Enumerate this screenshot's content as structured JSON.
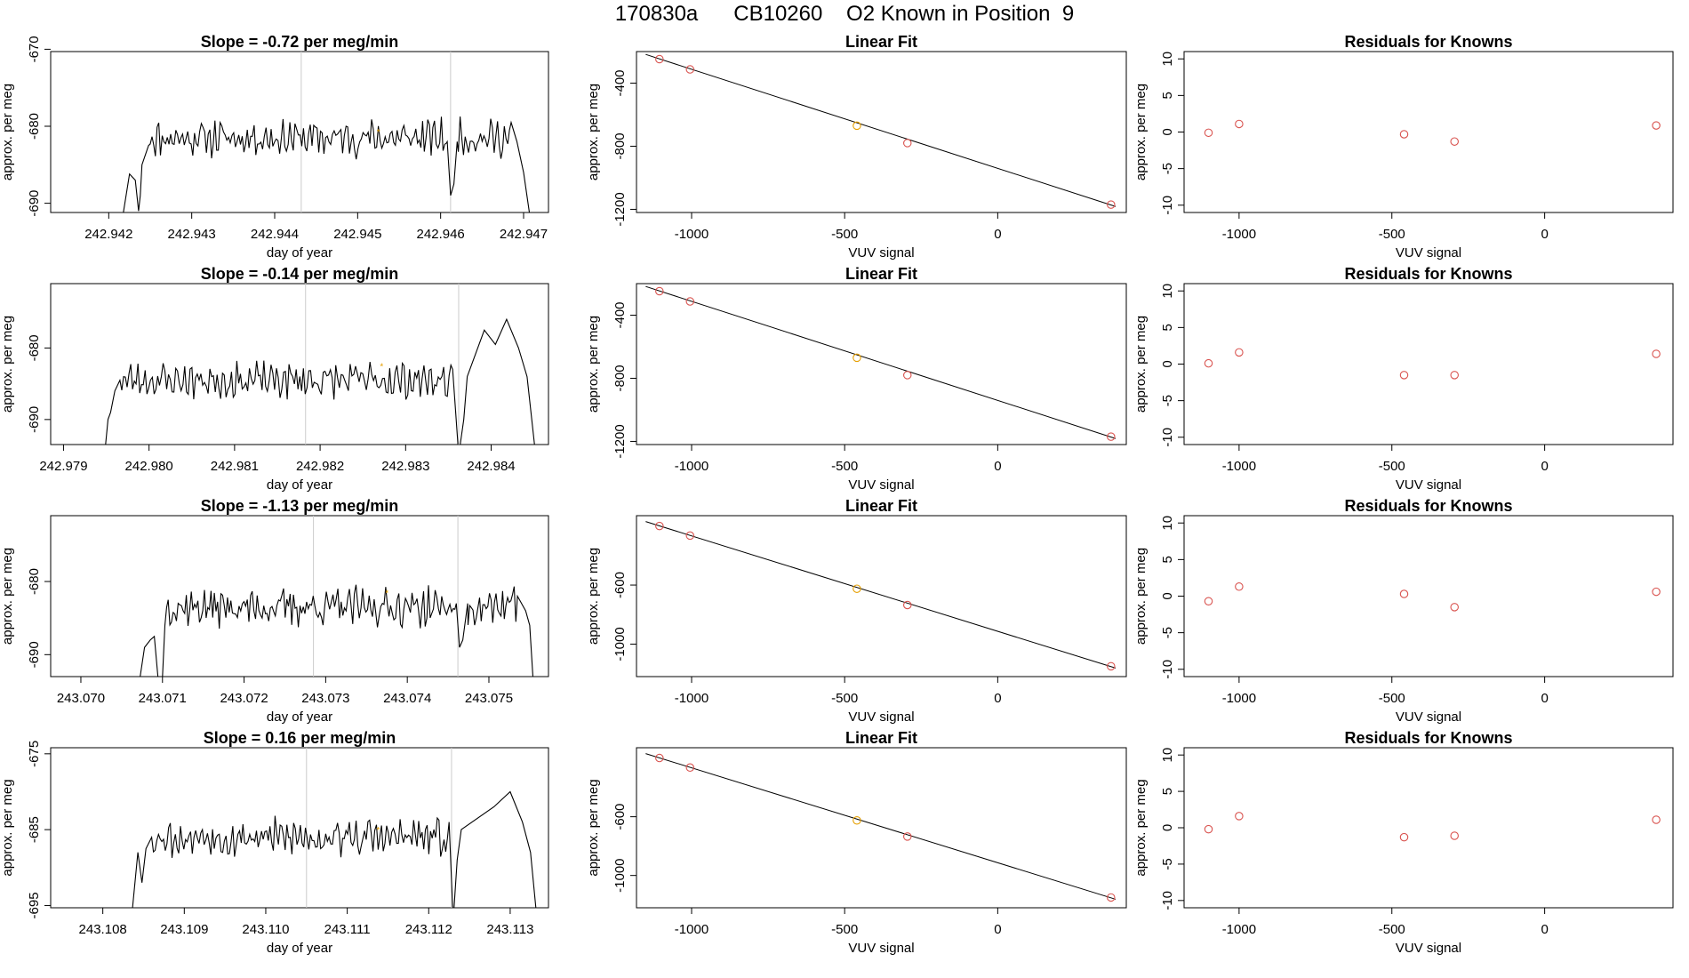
{
  "page": {
    "title": "170830a      CB10260    O2 Known in Position  9"
  },
  "colors": {
    "trace": "#000000",
    "gridline": "#cccccc",
    "marker_red": "#d9534f",
    "marker_orange": "#e69f00",
    "fit_line": "#000000"
  },
  "chart_data": [
    {
      "type": "line",
      "row": 1,
      "title": "Slope =  -0.72  per meg/min",
      "xlabel": "day of year",
      "ylabel": "approx. per meg",
      "xlim": [
        242.9413,
        242.9473
      ],
      "ylim": [
        -691.2,
        -670.3
      ],
      "xticks": [
        "242.942",
        "242.943",
        "242.944",
        "242.945",
        "242.946",
        "242.947"
      ],
      "yticks": [
        "-670",
        "-680",
        "-690"
      ],
      "segment_markers_x": [
        242.94432,
        242.94612
      ],
      "marker": {
        "x": 242.94525,
        "y": -680.7
      },
      "trace": {
        "x_start": 242.94215,
        "x_end": 242.94708,
        "base": -681.5,
        "amp": 1.8,
        "seed": 11,
        "ends": [
          [
            242.94215,
            -693
          ],
          [
            242.94225,
            -686.2
          ],
          [
            242.94232,
            -687
          ],
          [
            242.94236,
            -691
          ],
          [
            242.94238,
            -689
          ],
          [
            242.9424,
            -685
          ],
          [
            242.94248,
            -682.5
          ]
        ],
        "tail": [
          [
            242.94685,
            -679.5
          ],
          [
            242.94692,
            -682
          ],
          [
            242.947,
            -686
          ],
          [
            242.94708,
            -692
          ]
        ],
        "drop": [
          [
            242.94608,
            -682
          ],
          [
            242.94612,
            -689
          ],
          [
            242.94616,
            -687.5
          ],
          [
            242.9462,
            -682
          ]
        ]
      }
    },
    {
      "type": "scatter",
      "row": 1,
      "title": "Linear Fit",
      "xlabel": "VUV signal",
      "ylabel": "approx. per meg",
      "xlim": [
        -1180,
        420
      ],
      "ylim": [
        -1220,
        -200
      ],
      "xticks": [
        "-1000",
        "-500",
        "0"
      ],
      "yticks": [
        "-400",
        "-800",
        "-1200"
      ],
      "points": [
        [
          -1105,
          -248
        ],
        [
          -1005,
          -313
        ],
        [
          -460,
          -670
        ],
        [
          -295,
          -780
        ],
        [
          370,
          -1170
        ]
      ],
      "highlight_index": 2,
      "fit": [
        [
          -1150,
          -218
        ],
        [
          385,
          -1182
        ]
      ]
    },
    {
      "type": "scatter",
      "row": 1,
      "title": "Residuals for Knowns",
      "xlabel": "VUV signal",
      "ylabel": "approx. per meg",
      "xlim": [
        -1180,
        420
      ],
      "ylim": [
        -11,
        11
      ],
      "xticks": [
        "-1000",
        "-500",
        "0"
      ],
      "yticks": [
        "10",
        "5",
        "0",
        "-5",
        "-10"
      ],
      "points": [
        [
          -1100,
          -0.1
        ],
        [
          -1000,
          1.1
        ],
        [
          -460,
          -0.3
        ],
        [
          -295,
          -1.3
        ],
        [
          365,
          0.9
        ]
      ]
    },
    {
      "type": "line",
      "row": 2,
      "title": "Slope =  -0.14  per meg/min",
      "xlabel": "day of year",
      "ylabel": "approx. per meg",
      "xlim": [
        242.97885,
        242.98467
      ],
      "ylim": [
        -693.5,
        -671
      ],
      "xticks": [
        "242.979",
        "242.980",
        "242.981",
        "242.982",
        "242.983",
        "242.984"
      ],
      "yticks": [
        "-680",
        "-690"
      ],
      "segment_markers_x": [
        242.98183,
        242.98362
      ],
      "marker": {
        "x": 242.98272,
        "y": -682.5
      },
      "trace": {
        "x_start": 242.97948,
        "x_end": 242.98452,
        "base": -684.5,
        "amp": 1.9,
        "seed": 23,
        "ends": [
          [
            242.97948,
            -695
          ],
          [
            242.97952,
            -690
          ],
          [
            242.97955,
            -689
          ],
          [
            242.9796,
            -686
          ],
          [
            242.97966,
            -684.5
          ]
        ],
        "tail": [
          [
            242.98355,
            -683
          ],
          [
            242.98362,
            -695
          ],
          [
            242.98368,
            -690
          ],
          [
            242.98372,
            -684
          ],
          [
            242.98392,
            -677.5
          ],
          [
            242.98405,
            -679.5
          ],
          [
            242.98418,
            -676
          ],
          [
            242.98432,
            -680
          ],
          [
            242.98442,
            -684
          ],
          [
            242.98452,
            -695
          ]
        ],
        "drop": []
      }
    },
    {
      "type": "scatter",
      "row": 2,
      "title": "Linear Fit",
      "xlabel": "VUV signal",
      "ylabel": "approx. per meg",
      "xlim": [
        -1180,
        420
      ],
      "ylim": [
        -1220,
        -200
      ],
      "xticks": [
        "-1000",
        "-500",
        "0"
      ],
      "yticks": [
        "-400",
        "-800",
        "-1200"
      ],
      "points": [
        [
          -1105,
          -248
        ],
        [
          -1005,
          -313
        ],
        [
          -460,
          -670
        ],
        [
          -295,
          -780
        ],
        [
          370,
          -1170
        ]
      ],
      "highlight_index": 2,
      "fit": [
        [
          -1150,
          -218
        ],
        [
          385,
          -1182
        ]
      ]
    },
    {
      "type": "scatter",
      "row": 2,
      "title": "Residuals for Knowns",
      "xlabel": "VUV signal",
      "ylabel": "approx. per meg",
      "xlim": [
        -1180,
        420
      ],
      "ylim": [
        -11,
        11
      ],
      "xticks": [
        "-1000",
        "-500",
        "0"
      ],
      "yticks": [
        "10",
        "5",
        "0",
        "-5",
        "-10"
      ],
      "points": [
        [
          -1100,
          0.1
        ],
        [
          -1000,
          1.6
        ],
        [
          -460,
          -1.5
        ],
        [
          -295,
          -1.5
        ],
        [
          365,
          1.4
        ]
      ]
    },
    {
      "type": "line",
      "row": 3,
      "title": "Slope =  -1.13  per meg/min",
      "xlabel": "day of year",
      "ylabel": "approx. per meg",
      "xlim": [
        243.06963,
        243.07573
      ],
      "ylim": [
        -693,
        -671
      ],
      "xticks": [
        "243.070",
        "243.071",
        "243.072",
        "243.073",
        "243.074",
        "243.075"
      ],
      "yticks": [
        "-680",
        "-690"
      ],
      "segment_markers_x": [
        243.07285,
        243.07462
      ],
      "marker": {
        "x": 243.07375,
        "y": -681.5
      },
      "trace": {
        "x_start": 243.0707,
        "x_end": 243.07555,
        "base": -683.5,
        "amp": 2.0,
        "seed": 37,
        "ends": [
          [
            243.0707,
            -695
          ],
          [
            243.07078,
            -689
          ],
          [
            243.07085,
            -688
          ],
          [
            243.0709,
            -687.5
          ],
          [
            243.07096,
            -695
          ],
          [
            243.071,
            -693
          ],
          [
            243.07103,
            -686
          ]
        ],
        "tail": [
          [
            243.07535,
            -682
          ],
          [
            243.07545,
            -684
          ],
          [
            243.0755,
            -686
          ],
          [
            243.07555,
            -695
          ]
        ],
        "drop": [
          [
            243.0746,
            -683
          ],
          [
            243.07464,
            -689
          ],
          [
            243.07468,
            -688
          ],
          [
            243.07474,
            -683
          ]
        ]
      }
    },
    {
      "type": "scatter",
      "row": 3,
      "title": "Linear Fit",
      "xlabel": "VUV signal",
      "ylabel": "approx. per meg",
      "xlim": [
        -1180,
        420
      ],
      "ylim": [
        -1220,
        -130
      ],
      "xticks": [
        "-1000",
        "-500",
        "0"
      ],
      "yticks": [
        "-600",
        "-1000"
      ],
      "points": [
        [
          -1105,
          -200
        ],
        [
          -1005,
          -265
        ],
        [
          -460,
          -625
        ],
        [
          -295,
          -735
        ],
        [
          370,
          -1150
        ]
      ],
      "highlight_index": 2,
      "fit": [
        [
          -1150,
          -170
        ],
        [
          385,
          -1162
        ]
      ]
    },
    {
      "type": "scatter",
      "row": 3,
      "title": "Residuals for Knowns",
      "xlabel": "VUV signal",
      "ylabel": "approx. per meg",
      "xlim": [
        -1180,
        420
      ],
      "ylim": [
        -11,
        11
      ],
      "xticks": [
        "-1000",
        "-500",
        "0"
      ],
      "yticks": [
        "10",
        "5",
        "0",
        "-5",
        "-10"
      ],
      "points": [
        [
          -1100,
          -0.7
        ],
        [
          -1000,
          1.3
        ],
        [
          -460,
          0.3
        ],
        [
          -295,
          -1.5
        ],
        [
          365,
          0.6
        ]
      ]
    },
    {
      "type": "line",
      "row": 4,
      "title": "Slope =  0.16  per meg/min",
      "xlabel": "day of year",
      "ylabel": "approx. per meg",
      "xlim": [
        243.10736,
        243.11347
      ],
      "ylim": [
        -695.3,
        -674.2
      ],
      "xticks": [
        "243.108",
        "243.109",
        "243.110",
        "243.111",
        "243.112",
        "243.113"
      ],
      "yticks": [
        "-675",
        "-685",
        "-695"
      ],
      "segment_markers_x": [
        243.1105,
        243.11228
      ],
      "marker": {
        "x": 243.11138,
        "y": -685
      },
      "trace": {
        "x_start": 243.10835,
        "x_end": 243.11333,
        "base": -686,
        "amp": 1.9,
        "seed": 53,
        "ends": [
          [
            243.10835,
            -697
          ],
          [
            243.10843,
            -688
          ],
          [
            243.10848,
            -692
          ],
          [
            243.10853,
            -687.5
          ],
          [
            243.1086,
            -686
          ]
        ],
        "tail": [
          [
            243.11225,
            -684
          ],
          [
            243.1123,
            -697
          ],
          [
            243.11235,
            -689
          ],
          [
            243.1124,
            -685
          ],
          [
            243.1128,
            -682
          ],
          [
            243.113,
            -680
          ],
          [
            243.11315,
            -684
          ],
          [
            243.11325,
            -688
          ],
          [
            243.11333,
            -697
          ]
        ],
        "drop": []
      }
    },
    {
      "type": "scatter",
      "row": 4,
      "title": "Linear Fit",
      "xlabel": "VUV signal",
      "ylabel": "approx. per meg",
      "xlim": [
        -1180,
        420
      ],
      "ylim": [
        -1220,
        -130
      ],
      "xticks": [
        "-1000",
        "-500",
        "0"
      ],
      "yticks": [
        "-600",
        "-1000"
      ],
      "points": [
        [
          -1105,
          -200
        ],
        [
          -1005,
          -265
        ],
        [
          -460,
          -625
        ],
        [
          -295,
          -735
        ],
        [
          370,
          -1150
        ]
      ],
      "highlight_index": 2,
      "fit": [
        [
          -1150,
          -170
        ],
        [
          385,
          -1162
        ]
      ]
    },
    {
      "type": "scatter",
      "row": 4,
      "title": "Residuals for Knowns",
      "xlabel": "VUV signal",
      "ylabel": "approx. per meg",
      "xlim": [
        -1180,
        420
      ],
      "ylim": [
        -11,
        11
      ],
      "xticks": [
        "-1000",
        "-500",
        "0"
      ],
      "yticks": [
        "10",
        "5",
        "0",
        "-5",
        "-10"
      ],
      "points": [
        [
          -1100,
          -0.2
        ],
        [
          -1000,
          1.6
        ],
        [
          -460,
          -1.3
        ],
        [
          -295,
          -1.1
        ],
        [
          365,
          1.1
        ]
      ]
    }
  ]
}
